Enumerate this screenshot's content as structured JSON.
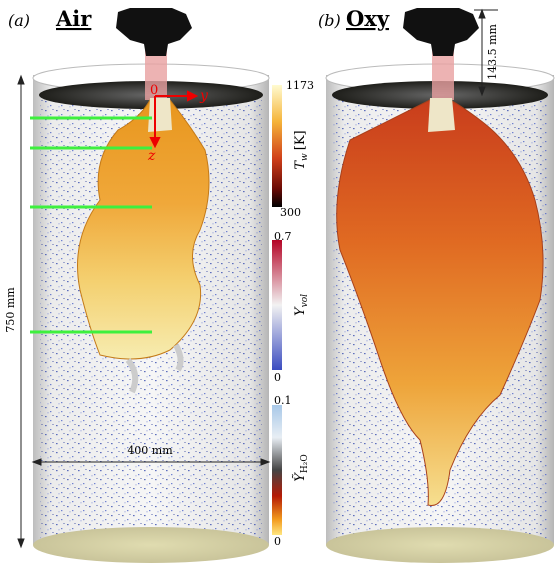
{
  "panels": [
    {
      "label": "(a)",
      "title": "Air"
    },
    {
      "label": "(b)",
      "title": "Oxy"
    }
  ],
  "dimensions": {
    "height": "750 mm",
    "width": "400 mm",
    "burner_offset": "143.5 mm"
  },
  "axes": {
    "origin": "0",
    "y": "y",
    "z": "z"
  },
  "colorbars": [
    {
      "symbol": "T",
      "subscript": "w",
      "unit": "[K]",
      "max": 1173,
      "min": 300
    },
    {
      "symbol": "Y",
      "subscript": "vol",
      "max": 0.7,
      "min": 0
    },
    {
      "symbol": "Ỹ",
      "subscript": "H₂O",
      "max": 0.1,
      "min": 0
    }
  ]
}
